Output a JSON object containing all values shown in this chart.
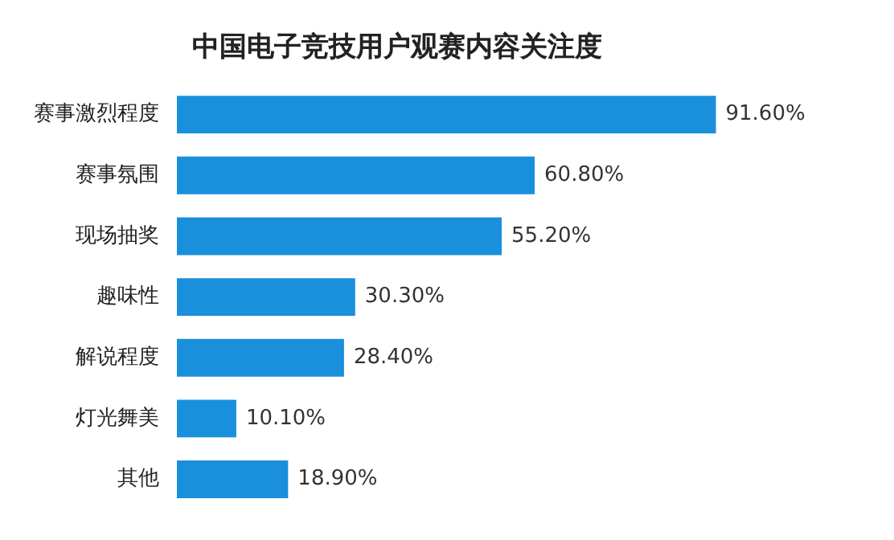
{
  "chart_data": {
    "type": "bar",
    "orientation": "horizontal",
    "title": "中国电子竞技用户观赛内容关注度",
    "categories": [
      "赛事激烈程度",
      "赛事氛围",
      "现场抽奖",
      "趣味性",
      "解说程度",
      "灯光舞美",
      "其他"
    ],
    "values": [
      91.6,
      60.8,
      55.2,
      30.3,
      28.4,
      10.1,
      18.9
    ],
    "value_labels": [
      "91.60%",
      "60.80%",
      "55.20%",
      "30.30%",
      "28.40%",
      "10.10%",
      "18.90%"
    ],
    "color": "#1a8fdc",
    "legend": false,
    "tick_labels": "y"
  }
}
